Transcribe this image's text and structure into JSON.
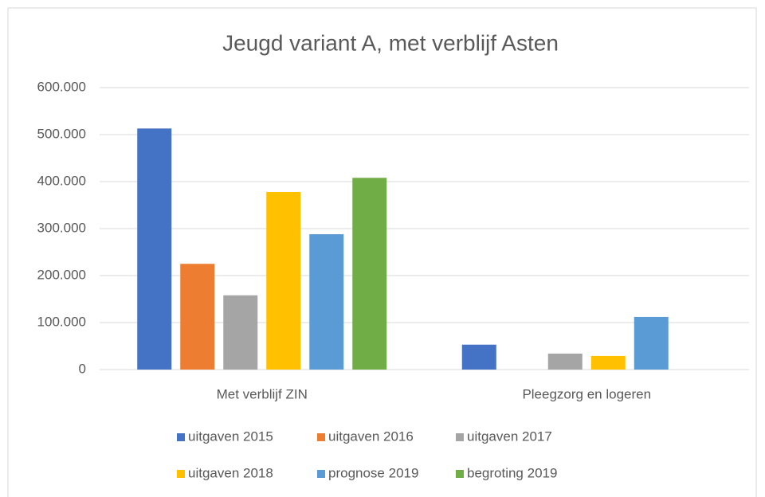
{
  "chart_data": {
    "type": "bar",
    "title": "Jeugd variant A, met verblijf Asten",
    "categories": [
      "Met verblijf ZIN",
      "Pleegzorg en logeren"
    ],
    "series": [
      {
        "name": "uitgaven 2015",
        "color": "#4472c4",
        "values": [
          513000,
          53000
        ]
      },
      {
        "name": "uitgaven 2016",
        "color": "#ed7d31",
        "values": [
          225000,
          0
        ]
      },
      {
        "name": "uitgaven 2017",
        "color": "#a5a5a5",
        "values": [
          158000,
          34000
        ]
      },
      {
        "name": "uitgaven 2018",
        "color": "#ffc000",
        "values": [
          378000,
          29000
        ]
      },
      {
        "name": "prognose 2019",
        "color": "#5b9bd5",
        "values": [
          288000,
          112000
        ]
      },
      {
        "name": "begroting 2019",
        "color": "#70ad47",
        "values": [
          408000,
          0
        ]
      }
    ],
    "ylim": [
      0,
      600000
    ],
    "yticks": [
      0,
      {
        "value": 100000,
        "label": "100.000"
      },
      {
        "value": 200000,
        "label": "200.000"
      },
      {
        "value": 300000,
        "label": "300.000"
      },
      {
        "value": 400000,
        "label": "400.000"
      },
      {
        "value": 500000,
        "label": "500.000"
      },
      {
        "value": 600000,
        "label": "600.000"
      }
    ],
    "grid": true,
    "legend": "bottom"
  }
}
